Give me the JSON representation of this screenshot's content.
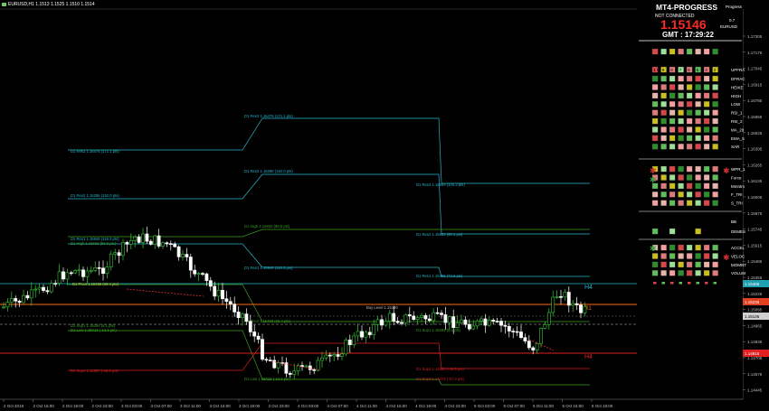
{
  "window": {
    "title": "EURUSD,H1  1.1513 1.1525 1.1510 1.1514"
  },
  "panel": {
    "title": "MT4-PROGRESS",
    "progress_tag": "Progress",
    "connection": "NOT CONNECTED ",
    "price": "1.15146",
    "spread": "0.7",
    "symbol": "EURUSD",
    "gmt": "GMT : 17:29:22",
    "signals": [
      "UPFRA",
      "DFRAC",
      "HEIKE",
      "HIGH",
      "LOW",
      "RSI_1",
      "RSI_2",
      "MA_20",
      "EMA_5",
      "SAR",
      "WPR_1",
      "Force",
      "Mmntm",
      "F_TRI",
      "S_TRI",
      "BB",
      "DEMES",
      "ACCEL",
      "VELOC",
      "MOMNT",
      "VOLUM"
    ],
    "tf_digits": [
      "1 0",
      "9",
      "8",
      "7",
      "6",
      "5",
      "3",
      "2"
    ]
  },
  "levels": [
    {
      "label": "D1 Res3 1.16476 (171.1 pts)",
      "color": "#27b4c8"
    },
    {
      "label": "D1 Res2 1.16286 (152.0 pts)",
      "color": "#27b4c8"
    },
    {
      "label": "D1 Res1 1.15948 (118.3 pts)",
      "color": "#27b4c8"
    },
    {
      "label": "D1 High 1.15632 (86.6 pts)",
      "color": "#3a9e22"
    },
    {
      "label": "D1 Pivot 1.15459 (69.4 pts)",
      "color": "#c8c820"
    },
    {
      "label": "D1 Low 1.15013 (-13.3 pts)",
      "color": "#3a9e22"
    },
    {
      "label": "D1 Sup1 1.14687 (-45.8 pts)",
      "color": "#d02020"
    },
    {
      "label": "D1 Res3 1.15809 (104.3 pts)",
      "color": "#27b4c8"
    },
    {
      "label": "D1 Res2 1.15652 (90.1 pts)",
      "color": "#27b4c8"
    },
    {
      "label": "D1 Res1 1.15495 (72.9 pts)",
      "color": "#27b4c8"
    },
    {
      "label": "Buy Level 1.15190",
      "color": "#bbbbbb"
    },
    {
      "label": "D1 Sup1 1.15094 (8.1 pts)",
      "color": "#3a9e22"
    },
    {
      "label": "D1 Sup2 1.14680 (-46.5 pts)",
      "color": "#d02020"
    },
    {
      "label": "D1 Sup3 1.14473 (-67.3 pts)",
      "color": "#d02020"
    }
  ],
  "chart_labels": {
    "h4_high": "H4",
    "h4_low": "H4",
    "r1": "R1"
  },
  "yaxis": [
    "1.17305",
    "1.17175",
    "1.17045",
    "1.16915",
    "1.16785",
    "1.16655",
    "1.16525",
    "1.16395",
    "1.16265",
    "1.16135",
    "1.16005",
    "1.15875",
    "1.15745",
    "1.15615",
    "1.15485",
    "1.15355",
    "1.15225",
    "1.15095",
    "1.14965",
    "1.14835",
    "1.14705",
    "1.14575",
    "1.14445"
  ],
  "ytags": [
    {
      "text": "1.15485",
      "color": "#20a0b0"
    },
    {
      "text": "1.15235",
      "color": "#e04020"
    },
    {
      "text": "1.15146",
      "color": "#d0d0d0"
    },
    {
      "text": "1.14915",
      "color": "#e02020"
    }
  ],
  "xaxis": [
    "2 Oct 2018",
    "2 Oct 15:00",
    "2 Oct 19:00",
    "2 Oct 23:00",
    "3 Oct 03:00",
    "3 Oct 07:00",
    "3 Oct 11:00",
    "3 Oct 15:00",
    "3 Oct 19:00",
    "3 Oct 23:00",
    "4 Oct 03:00",
    "4 Oct 07:00",
    "4 Oct 11:00",
    "4 Oct 15:00",
    "4 Oct 19:00",
    "4 Oct 23:00",
    "5 Oct 03:00",
    "5 Oct 07:00",
    "5 Oct 11:00",
    "5 Oct 15:00",
    "5 Oct 19:00"
  ],
  "colors": {
    "cyan": "#27b4c8",
    "green": "#3a9e22",
    "red": "#d02020",
    "orange": "#ff6a10",
    "bull": "#39c639",
    "bear": "#ffffff",
    "price": "#ff3030"
  }
}
